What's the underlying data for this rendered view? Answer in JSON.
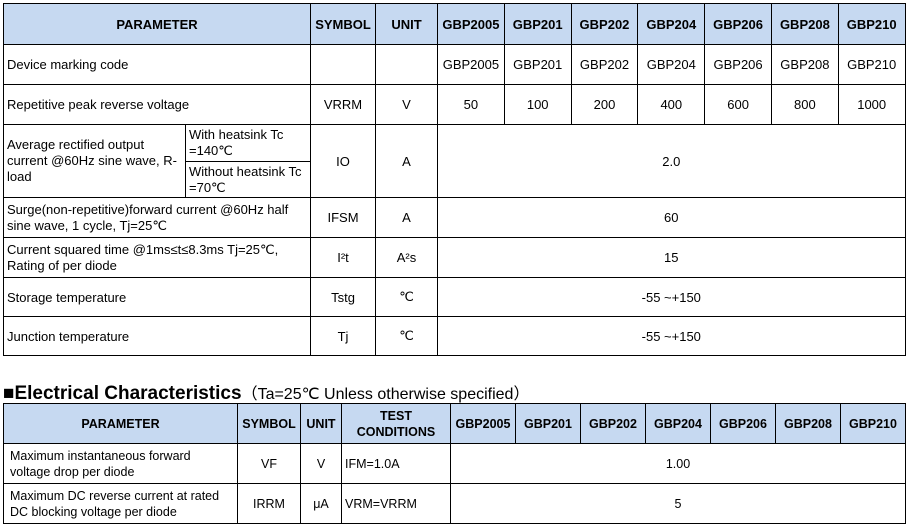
{
  "ratings": {
    "headers": {
      "parameter": "PARAMETER",
      "symbol": "SYMBOL",
      "unit": "UNIT",
      "models": [
        "GBP2005",
        "GBP201",
        "GBP202",
        "GBP204",
        "GBP206",
        "GBP208",
        "GBP210"
      ]
    },
    "marking": {
      "param": "Device marking code",
      "codes": [
        "GBP2005",
        "GBP201",
        "GBP202",
        "GBP204",
        "GBP206",
        "GBP208",
        "GBP210"
      ]
    },
    "vrrm": {
      "param": "Repetitive peak reverse voltage",
      "symbol": "VRRM",
      "unit": "V",
      "values": [
        "50",
        "100",
        "200",
        "400",
        "600",
        "800",
        "1000"
      ]
    },
    "io": {
      "param": "Average rectified output current @60Hz sine wave, R-load",
      "cond1": "With heatsink Tc =140℃",
      "cond2": "Without heatsink Tc =70℃",
      "symbol": "IO",
      "unit": "A",
      "value": "2.0"
    },
    "ifsm": {
      "param": "Surge(non-repetitive)forward current @60Hz half sine wave, 1 cycle, Tj=25℃",
      "symbol": "IFSM",
      "unit": "A",
      "value": "60"
    },
    "i2t": {
      "param": "Current squared time @1ms≤t≤8.3ms Tj=25℃, Rating of per diode",
      "symbol": "I²t",
      "unit": "A²s",
      "value": "15"
    },
    "tstg": {
      "param": "Storage temperature",
      "symbol": "Tstg",
      "unit": "℃",
      "value": "-55 ~+150"
    },
    "tj": {
      "param": "Junction temperature",
      "symbol": "Tj",
      "unit": "℃",
      "value": "-55 ~+150"
    }
  },
  "electrical": {
    "title": "■Electrical Characteristics",
    "condition": "（Ta=25℃ Unless otherwise specified）",
    "headers": {
      "parameter": "PARAMETER",
      "symbol": "SYMBOL",
      "unit": "UNIT",
      "test": "TEST CONDITIONS",
      "models": [
        "GBP2005",
        "GBP201",
        "GBP202",
        "GBP204",
        "GBP206",
        "GBP208",
        "GBP210"
      ]
    },
    "vf": {
      "param": "Maximum instantaneous forward voltage drop per diode",
      "symbol": "VF",
      "unit": "V",
      "test": "IFM=1.0A",
      "value": "1.00"
    },
    "irrm": {
      "param": "Maximum DC reverse current at rated DC blocking voltage per diode",
      "symbol": "IRRM",
      "unit": "μA",
      "test": "VRM=VRRM",
      "value": "5"
    }
  }
}
